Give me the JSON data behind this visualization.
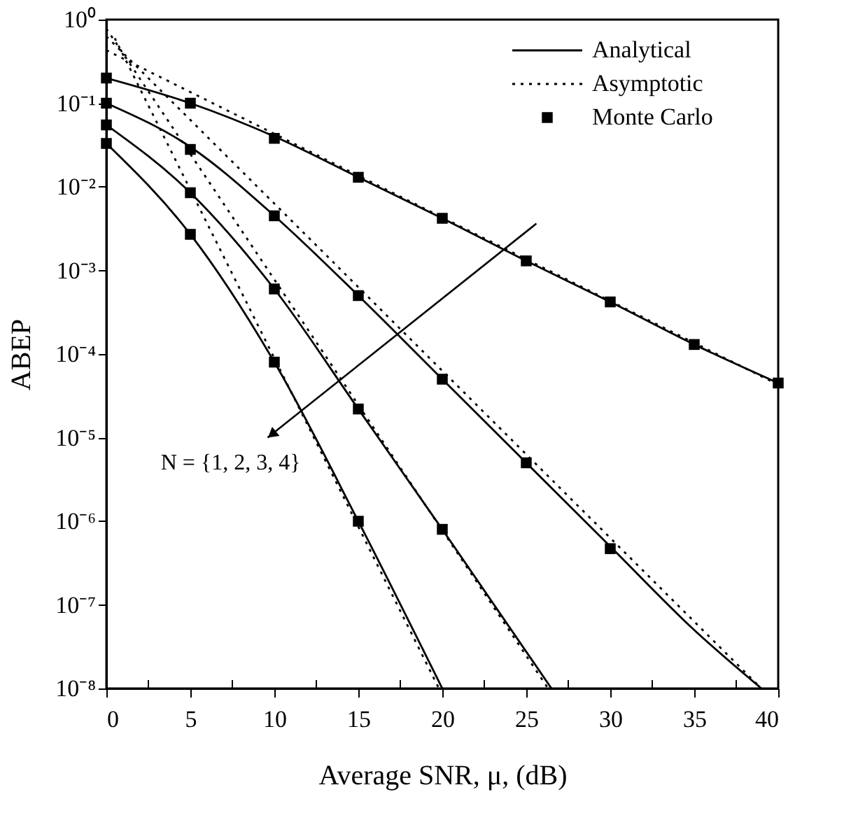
{
  "chart_data": {
    "type": "line",
    "xlabel": "Average SNR, μ, (dB)",
    "ylabel": "ABEP",
    "log": "y",
    "grid": false,
    "legend": "top right",
    "xlim": [
      0,
      40
    ],
    "xticks": [
      0,
      {
        "value": 2.5,
        "label": null
      },
      5,
      {
        "value": 7.5,
        "label": null
      },
      10,
      {
        "value": 12.5,
        "label": null
      },
      15,
      {
        "value": 17.5,
        "label": null
      },
      20,
      {
        "value": 22.5,
        "label": null
      },
      25,
      {
        "value": 27.5,
        "label": null
      },
      30,
      {
        "value": 32.5,
        "label": null
      },
      35,
      {
        "value": 37.5,
        "label": null
      },
      40
    ],
    "ylim": [
      1e-08,
      1
    ],
    "yticks": [
      {
        "value": 1e-08,
        "label": "10⁻⁸"
      },
      {
        "value": 1e-07,
        "label": "10⁻⁷"
      },
      {
        "value": 1e-06,
        "label": "10⁻⁶"
      },
      {
        "value": 1e-05,
        "label": "10⁻⁵"
      },
      {
        "value": 0.0001,
        "label": "10⁻⁴"
      },
      {
        "value": 0.001,
        "label": "10⁻³"
      },
      {
        "value": 0.01,
        "label": "10⁻²"
      },
      {
        "value": 0.1,
        "label": "10⁻¹"
      },
      {
        "value": 1,
        "label": "10⁰"
      }
    ],
    "annotations": [
      "N = {1, 2, 3, 4}"
    ],
    "series": [
      {
        "name": "Analytical",
        "line_style": "solid",
        "marker": "none",
        "color": "#000000",
        "x": [
          0,
          5,
          10,
          15,
          20,
          25,
          30,
          35,
          40
        ],
        "values": [
          0.2,
          0.1,
          0.04,
          0.013,
          0.0042,
          0.0013,
          0.00042,
          0.00013,
          4.5e-05
        ]
      },
      {
        "line_style": "solid",
        "marker": "none",
        "color": "#000000",
        "x": [
          0,
          5,
          10,
          15,
          20,
          25,
          30,
          35,
          39
        ],
        "values": [
          0.1,
          0.03,
          0.0045,
          0.0005,
          5e-05,
          5e-06,
          5e-07,
          5e-08,
          1e-08
        ]
      },
      {
        "line_style": "solid",
        "marker": "none",
        "color": "#000000",
        "x": [
          0,
          5,
          10,
          15,
          20,
          26.5
        ],
        "values": [
          0.055,
          0.0085,
          0.0006,
          2.2e-05,
          8e-07,
          1e-08
        ]
      },
      {
        "line_style": "solid",
        "marker": "none",
        "color": "#000000",
        "x": [
          0,
          5,
          10,
          15,
          20
        ],
        "values": [
          0.033,
          0.0027,
          8e-05,
          1e-06,
          1e-08
        ]
      },
      {
        "name": "Asymptotic",
        "line_style": "dotted",
        "marker": "none",
        "color": "#000000",
        "x": [
          0,
          40
        ],
        "values": [
          0.43,
          4.3e-05
        ]
      },
      {
        "line_style": "dotted",
        "marker": "none",
        "color": "#000000",
        "x": [
          0,
          39
        ],
        "values": [
          0.63,
          1e-08
        ]
      },
      {
        "line_style": "dotted",
        "marker": "none",
        "color": "#000000",
        "x": [
          0,
          26.3
        ],
        "values": [
          0.78,
          1e-08
        ]
      },
      {
        "line_style": "dotted",
        "marker": "none",
        "color": "#000000",
        "x": [
          0.5,
          19.8
        ],
        "values": [
          0.6,
          1e-08
        ]
      },
      {
        "name": "Monte Carlo",
        "type": "scatter",
        "marker": "square",
        "color": "#000000",
        "x": [
          0,
          5,
          10,
          15,
          20,
          25,
          30,
          35,
          40
        ],
        "values": [
          0.2,
          0.1,
          0.038,
          0.013,
          0.0042,
          0.0013,
          0.00042,
          0.00013,
          4.5e-05
        ]
      },
      {
        "type": "scatter",
        "marker": "square",
        "color": "#000000",
        "x": [
          0,
          5,
          10,
          15,
          20,
          25,
          30
        ],
        "values": [
          0.1,
          0.028,
          0.0045,
          0.0005,
          5e-05,
          5e-06,
          4.7e-07
        ]
      },
      {
        "type": "scatter",
        "marker": "square",
        "color": "#000000",
        "x": [
          0,
          5,
          10,
          15,
          20
        ],
        "values": [
          0.055,
          0.0085,
          0.0006,
          2.2e-05,
          8e-07
        ]
      },
      {
        "type": "scatter",
        "marker": "square",
        "color": "#000000",
        "x": [
          0,
          5,
          10,
          15
        ],
        "values": [
          0.033,
          0.0027,
          8e-05,
          1e-06
        ]
      }
    ]
  }
}
